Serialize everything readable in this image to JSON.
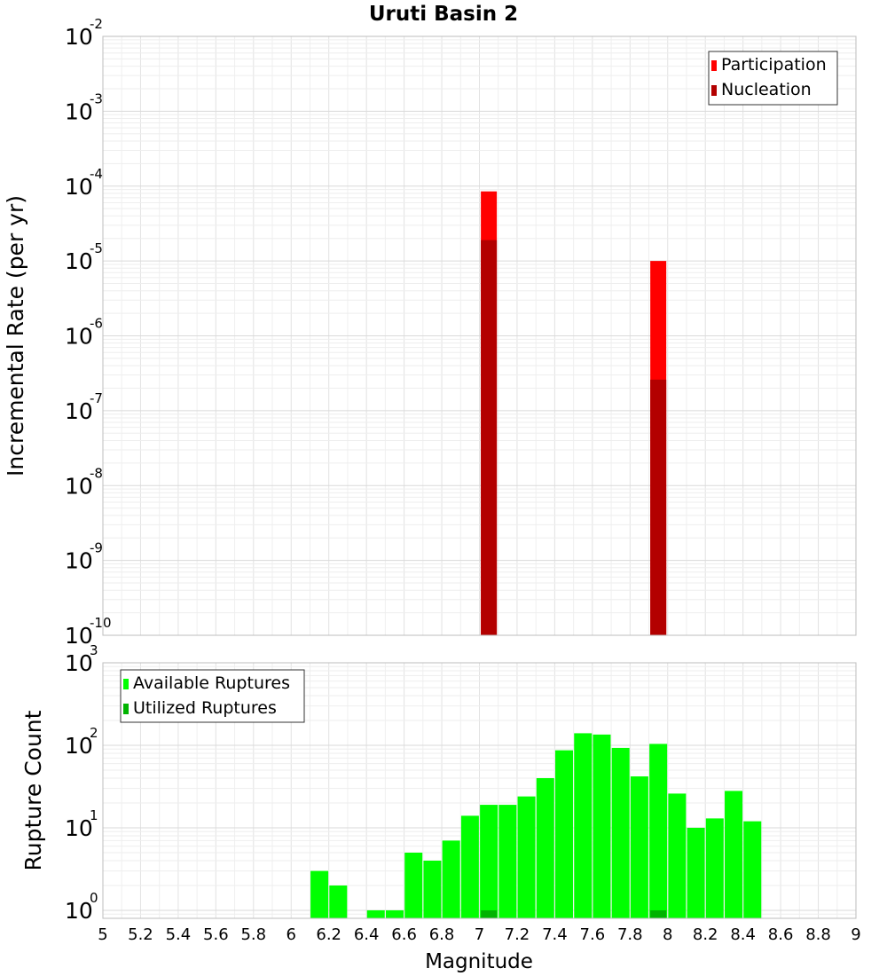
{
  "chart_data": [
    {
      "type": "bar",
      "title": "Uruti Basin 2",
      "xlabel": "Magnitude",
      "ylabel": "Incremental Rate (per yr)",
      "yscale": "log",
      "ylim": [
        1e-10,
        0.01
      ],
      "xlim": [
        5,
        9
      ],
      "y_tick_exponents": [
        "-10",
        "-9",
        "-8",
        "-7",
        "-6",
        "-5",
        "-4",
        "-3",
        "-2"
      ],
      "legend": {
        "position": "top-right",
        "items": [
          "Participation",
          "Nucleation"
        ]
      },
      "series": [
        {
          "name": "Participation",
          "color": "#ff0000",
          "points": [
            {
              "x": 7.05,
              "y": 8.5e-05
            },
            {
              "x": 7.95,
              "y": 1e-05
            }
          ]
        },
        {
          "name": "Nucleation",
          "color": "#b30000",
          "points": [
            {
              "x": 7.05,
              "y": 1.9e-05
            },
            {
              "x": 7.95,
              "y": 2.6e-07
            }
          ]
        }
      ]
    },
    {
      "type": "bar",
      "xlabel": "Magnitude",
      "ylabel": "Rupture Count",
      "yscale": "log",
      "ylim": [
        0.8,
        1000
      ],
      "xlim": [
        5,
        9
      ],
      "y_tick_exponents": [
        "0",
        "1",
        "2",
        "3"
      ],
      "x_tick_labels": [
        "5",
        "5.2",
        "5.4",
        "5.6",
        "5.8",
        "6",
        "6.2",
        "6.4",
        "6.6",
        "6.8",
        "7",
        "7.2",
        "7.4",
        "7.6",
        "7.8",
        "8",
        "8.2",
        "8.4",
        "8.6",
        "8.8",
        "9"
      ],
      "legend": {
        "position": "top-left",
        "items": [
          "Available Ruptures",
          "Utilized Ruptures"
        ]
      },
      "series": [
        {
          "name": "Available Ruptures",
          "color": "#00ff00",
          "points": [
            {
              "x": 6.15,
              "y": 3
            },
            {
              "x": 6.25,
              "y": 2
            },
            {
              "x": 6.45,
              "y": 1
            },
            {
              "x": 6.55,
              "y": 1
            },
            {
              "x": 6.65,
              "y": 5
            },
            {
              "x": 6.75,
              "y": 4
            },
            {
              "x": 6.85,
              "y": 7
            },
            {
              "x": 6.95,
              "y": 14
            },
            {
              "x": 7.05,
              "y": 19
            },
            {
              "x": 7.15,
              "y": 19
            },
            {
              "x": 7.25,
              "y": 24
            },
            {
              "x": 7.35,
              "y": 40
            },
            {
              "x": 7.45,
              "y": 87
            },
            {
              "x": 7.55,
              "y": 140
            },
            {
              "x": 7.65,
              "y": 135
            },
            {
              "x": 7.75,
              "y": 93
            },
            {
              "x": 7.85,
              "y": 42
            },
            {
              "x": 7.95,
              "y": 104
            },
            {
              "x": 8.05,
              "y": 26
            },
            {
              "x": 8.15,
              "y": 10
            },
            {
              "x": 8.25,
              "y": 13
            },
            {
              "x": 8.35,
              "y": 28
            },
            {
              "x": 8.45,
              "y": 12
            }
          ]
        },
        {
          "name": "Utilized Ruptures",
          "color": "#00b300",
          "points": [
            {
              "x": 7.05,
              "y": 1
            },
            {
              "x": 7.95,
              "y": 1
            }
          ]
        }
      ]
    }
  ]
}
